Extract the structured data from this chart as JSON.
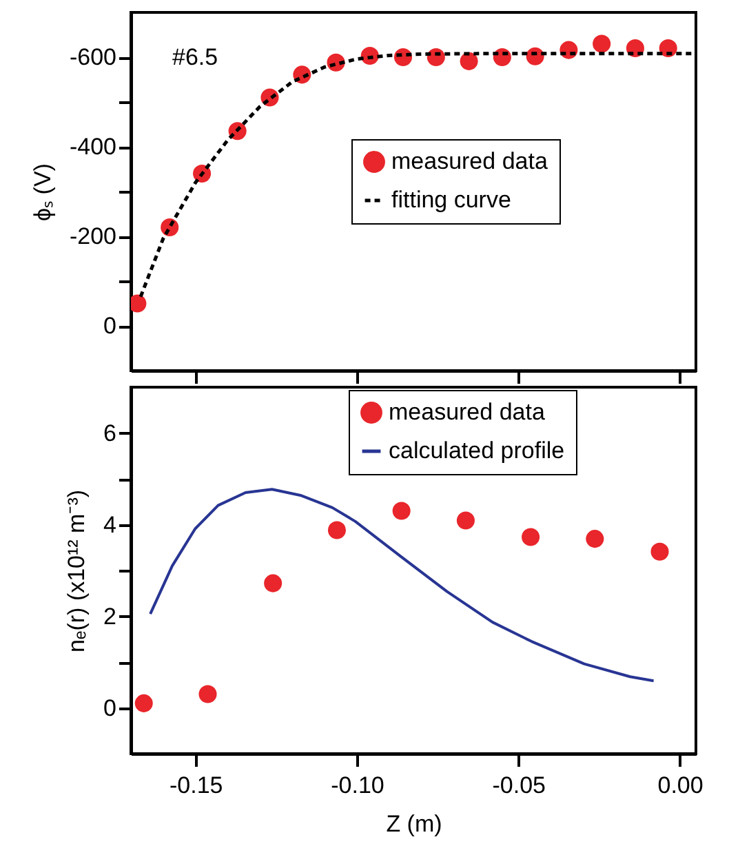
{
  "chart_data": [
    {
      "type": "scatter",
      "ylabel": "ϕₛ (V)",
      "xlim": [
        -0.17,
        0.005
      ],
      "xticks": [
        {
          "value": -0.15,
          "label": null
        },
        {
          "value": -0.1,
          "label": null
        },
        {
          "value": -0.05,
          "label": null
        },
        {
          "value": 0,
          "label": null
        }
      ],
      "ylim": [
        100,
        -700
      ],
      "yticks": [
        0,
        {
          "value": -100,
          "label": null
        },
        -200,
        {
          "value": -300,
          "label": null
        },
        -400,
        {
          "value": -500,
          "label": null
        },
        -600
      ],
      "tick_labels": "y",
      "grid": false,
      "legend": "right",
      "annotations": [
        "#6.5"
      ],
      "series": [
        {
          "name": "measured data",
          "marker": "circle",
          "color": "#e8262b",
          "x": [
            -0.168,
            -0.158,
            -0.148,
            -0.137,
            -0.127,
            -0.117,
            -0.1065,
            -0.096,
            -0.0857,
            -0.0755,
            -0.0653,
            -0.055,
            -0.0448,
            -0.0344,
            -0.0242,
            -0.0138,
            -0.0036
          ],
          "values": [
            -50,
            -220,
            -340,
            -435,
            -510,
            -561,
            -588,
            -603,
            -600,
            -600,
            -591,
            -600,
            -602,
            -616,
            -630,
            -620,
            -620
          ]
        },
        {
          "name": "fitting curve",
          "type": "line",
          "line_style": "dashed",
          "color": "#000000",
          "x": [
            -0.167,
            -0.16,
            -0.15,
            -0.14,
            -0.13,
            -0.12,
            -0.11,
            -0.1,
            -0.09,
            -0.08,
            -0.06,
            -0.04,
            0.005
          ],
          "values": [
            -65,
            -195,
            -320,
            -415,
            -490,
            -545,
            -578,
            -596,
            -604,
            -607,
            -608,
            -608,
            -608
          ]
        }
      ]
    },
    {
      "type": "scatter",
      "xlabel": "Z (m)",
      "ylabel": "nₑ(r) (x10¹² m⁻³)",
      "xlim": [
        -0.17,
        0.005
      ],
      "xticks": [
        -0.15,
        {
          "value": -0.1,
          "label": "-0.10"
        },
        -0.05,
        {
          "value": 0,
          "label": "0.00"
        }
      ],
      "ylim": [
        -1,
        7
      ],
      "yticks": [
        0,
        {
          "value": 1,
          "label": null
        },
        2,
        {
          "value": 3,
          "label": null
        },
        4,
        {
          "value": 5,
          "label": null
        },
        6
      ],
      "grid": false,
      "legend": "top right",
      "series": [
        {
          "name": "measured data",
          "marker": "circle",
          "color": "#e8262b",
          "x": [
            -0.166,
            -0.1462,
            -0.126,
            -0.1062,
            -0.0862,
            -0.0663,
            -0.0462,
            -0.0263,
            -0.0062
          ],
          "values": [
            0.1,
            0.3,
            2.72,
            3.88,
            4.3,
            4.09,
            3.73,
            3.69,
            3.41
          ]
        },
        {
          "name": "calculated profile",
          "type": "line",
          "line_style": "solid",
          "color": "#283593",
          "x": [
            -0.164,
            -0.1572,
            -0.1501,
            -0.143,
            -0.1345,
            -0.1263,
            -0.1175,
            -0.1076,
            -0.1005,
            -0.0863,
            -0.0721,
            -0.058,
            -0.0459,
            -0.0296,
            -0.0154,
            -0.0081
          ],
          "values": [
            2.05,
            3.1,
            3.91,
            4.42,
            4.7,
            4.77,
            4.64,
            4.37,
            4.07,
            3.3,
            2.54,
            1.87,
            1.45,
            0.96,
            0.68,
            0.59
          ]
        }
      ]
    }
  ]
}
